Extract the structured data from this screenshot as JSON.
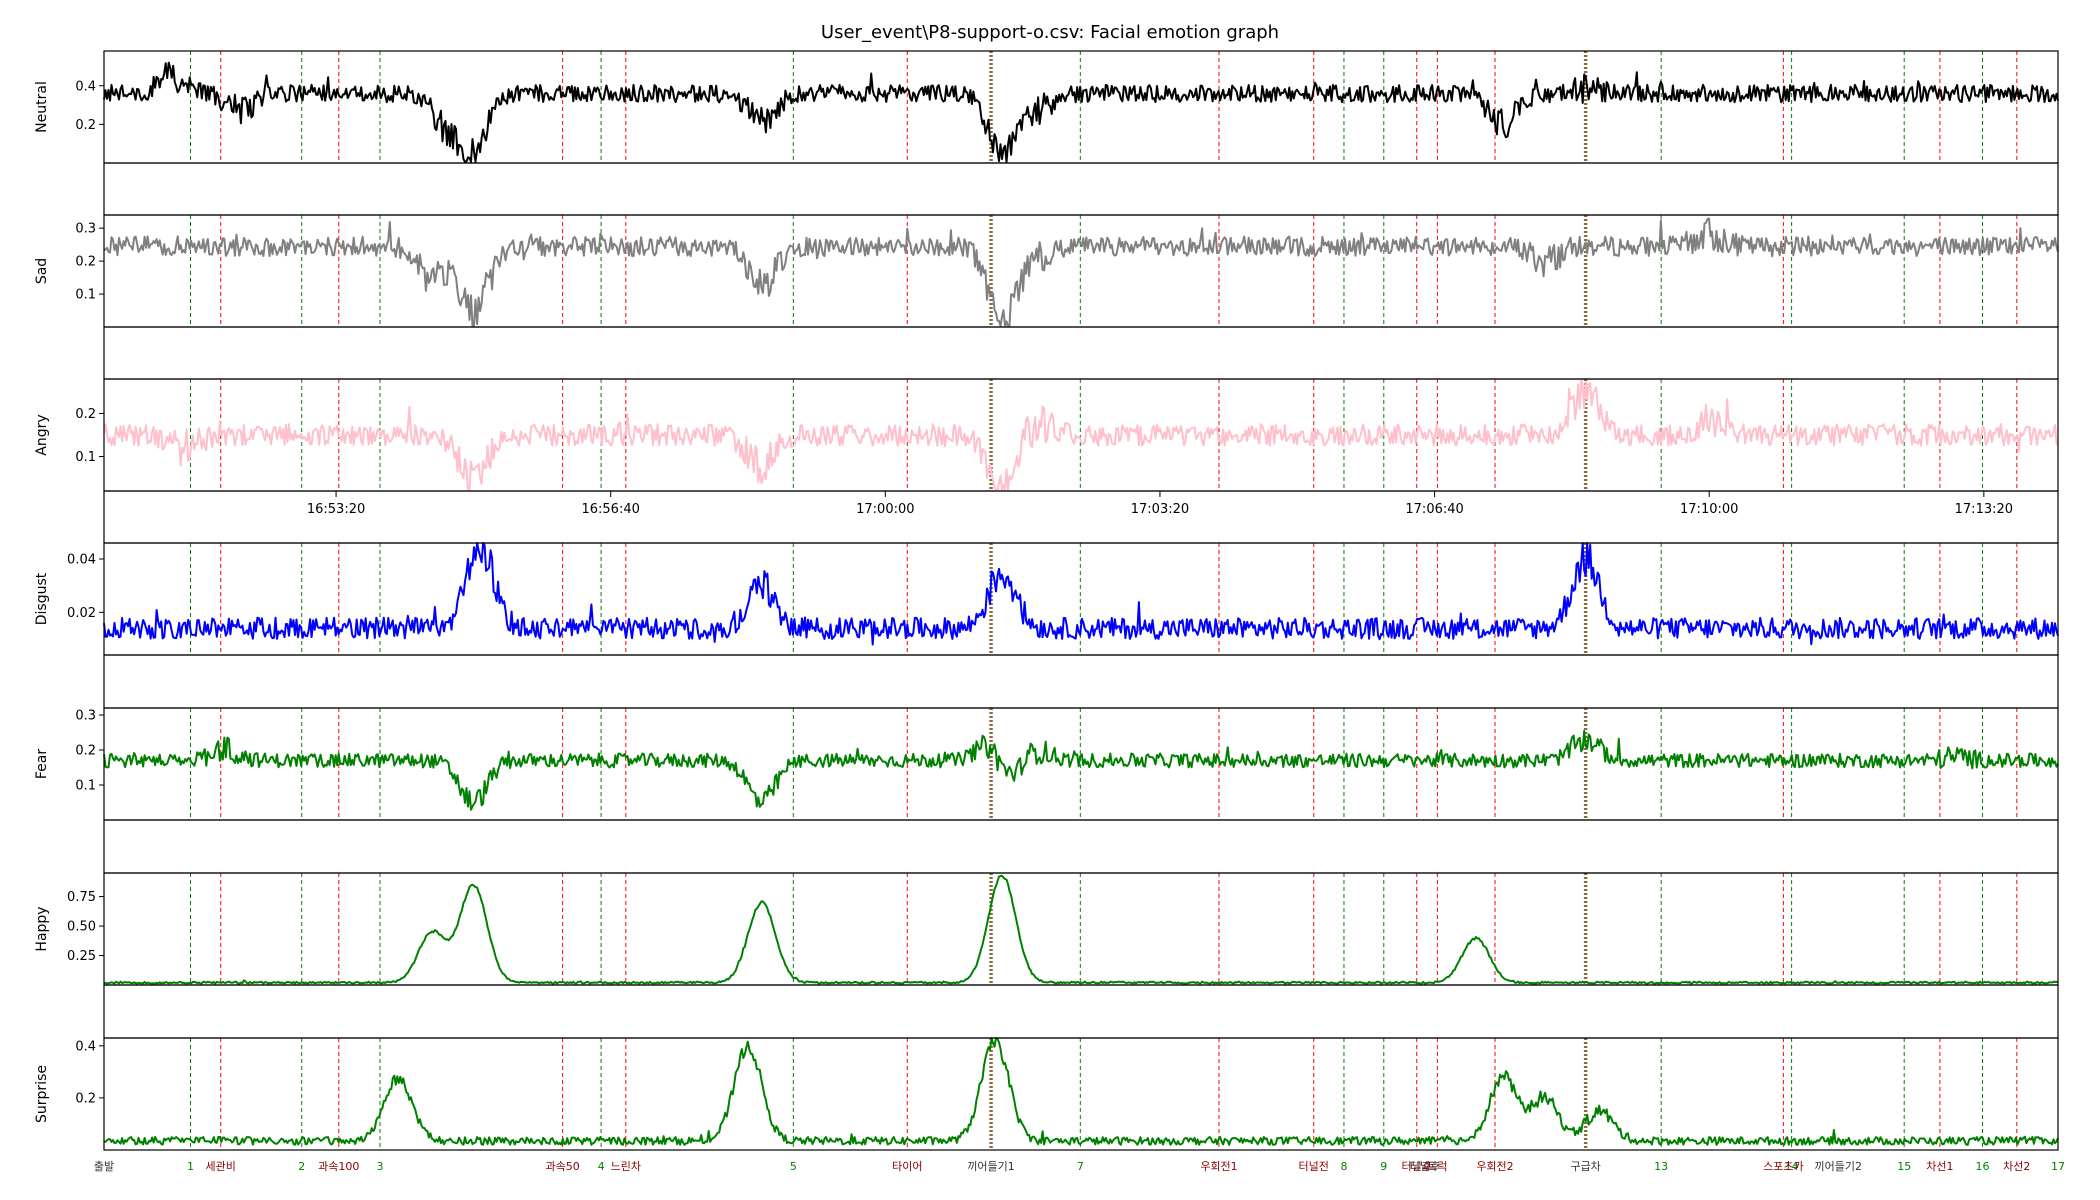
{
  "title": "User_event\\P8-support-o.csv: Facial emotion graph",
  "chart_data": {
    "type": "line",
    "time_axis": {
      "range": [
        "16:50:31",
        "17:14:14"
      ],
      "ticks": [
        "16:53:20",
        "16:56:40",
        "17:00:00",
        "17:03:20",
        "17:06:40",
        "17:10:00",
        "17:13:20"
      ]
    },
    "series": [
      {
        "name": "Neutral",
        "color": "#000000",
        "ylim": [
          0.0,
          0.58
        ],
        "ticks": [
          0.2,
          0.4
        ],
        "tick_labels": [
          "0.2",
          "0.4"
        ],
        "baseline": 0.36,
        "noise": 0.045,
        "keypoints": [
          [
            "16:51:20",
            0.45
          ],
          [
            "16:52:10",
            0.28
          ],
          [
            "16:54:40",
            0.2
          ],
          [
            "16:55:00",
            0.08
          ],
          [
            "16:58:30",
            0.22
          ],
          [
            "17:01:25",
            0.04
          ],
          [
            "17:01:50",
            0.28
          ],
          [
            "17:07:30",
            0.2
          ],
          [
            "17:08:30",
            0.38
          ]
        ]
      },
      {
        "name": "Sad",
        "color": "#808080",
        "ylim": [
          0.0,
          0.34
        ],
        "ticks": [
          0.1,
          0.2,
          0.3
        ],
        "tick_labels": [
          "0.1",
          "0.2",
          "0.3"
        ],
        "baseline": 0.245,
        "noise": 0.03,
        "keypoints": [
          [
            "16:54:30",
            0.15
          ],
          [
            "16:55:00",
            0.05
          ],
          [
            "16:58:30",
            0.12
          ],
          [
            "17:01:25",
            0.02
          ],
          [
            "17:01:50",
            0.2
          ],
          [
            "17:08:00",
            0.2
          ],
          [
            "17:10:00",
            0.28
          ]
        ]
      },
      {
        "name": "Angry",
        "color": "#ffc0cb",
        "ylim": [
          0.02,
          0.28
        ],
        "ticks": [
          0.1,
          0.2
        ],
        "tick_labels": [
          "0.1",
          "0.2"
        ],
        "baseline": 0.15,
        "noise": 0.025,
        "keypoints": [
          [
            "16:51:30",
            0.12
          ],
          [
            "16:55:00",
            0.05
          ],
          [
            "16:58:30",
            0.08
          ],
          [
            "17:01:25",
            0.03
          ],
          [
            "17:01:50",
            0.18
          ],
          [
            "17:08:30",
            0.25
          ],
          [
            "17:10:00",
            0.19
          ]
        ]
      },
      {
        "name": "Disgust",
        "color": "#0000ff",
        "ylim": [
          0.004,
          0.046
        ],
        "ticks": [
          0.02,
          0.04
        ],
        "tick_labels": [
          "0.02",
          "0.04"
        ],
        "baseline": 0.014,
        "noise": 0.004,
        "keypoints": [
          [
            "16:55:05",
            0.045
          ],
          [
            "16:58:30",
            0.03
          ],
          [
            "17:01:25",
            0.035
          ],
          [
            "17:08:30",
            0.04
          ]
        ]
      },
      {
        "name": "Fear",
        "color": "#008000",
        "ylim": [
          0.0,
          0.32
        ],
        "ticks": [
          0.1,
          0.2,
          0.3
        ],
        "tick_labels": [
          "0.1",
          "0.2",
          "0.3"
        ],
        "baseline": 0.17,
        "noise": 0.02,
        "keypoints": [
          [
            "16:52:00",
            0.2
          ],
          [
            "16:55:00",
            0.05
          ],
          [
            "16:58:30",
            0.05
          ],
          [
            "17:01:20",
            0.31
          ],
          [
            "17:01:25",
            0.03
          ],
          [
            "17:01:50",
            0.2
          ],
          [
            "17:08:30",
            0.23
          ],
          [
            "17:13:00",
            0.18
          ]
        ]
      },
      {
        "name": "Happy",
        "color": "#008000",
        "ylim": [
          0.0,
          0.95
        ],
        "ticks": [
          0.25,
          0.5,
          0.75
        ],
        "tick_labels": [
          "0.25",
          "0.50",
          "0.75"
        ],
        "baseline": 0.02,
        "noise": 0.008,
        "keypoints": [
          [
            "16:54:30",
            0.45
          ],
          [
            "16:55:00",
            0.85
          ],
          [
            "16:58:30",
            0.7
          ],
          [
            "17:01:25",
            0.93
          ],
          [
            "17:07:10",
            0.4
          ]
        ]
      },
      {
        "name": "Surprise",
        "color": "#008000",
        "ylim": [
          0.0,
          0.43
        ],
        "ticks": [
          0.2,
          0.4
        ],
        "tick_labels": [
          "0.2",
          "0.4"
        ],
        "baseline": 0.035,
        "noise": 0.015,
        "keypoints": [
          [
            "16:54:05",
            0.28
          ],
          [
            "16:58:20",
            0.4
          ],
          [
            "17:01:20",
            0.42
          ],
          [
            "17:07:30",
            0.28
          ],
          [
            "17:08:00",
            0.2
          ],
          [
            "17:08:40",
            0.15
          ]
        ]
      }
    ],
    "green_events": [
      {
        "time": "16:51:34",
        "label": "1"
      },
      {
        "time": "16:52:55",
        "label": "2"
      },
      {
        "time": "16:53:52",
        "label": "3"
      },
      {
        "time": "16:56:33",
        "label": "4"
      },
      {
        "time": "16:58:53",
        "label": "5"
      },
      {
        "time": "17:02:22",
        "label": "7"
      },
      {
        "time": "17:05:34",
        "label": "8"
      },
      {
        "time": "17:06:03",
        "label": "9"
      },
      {
        "time": "17:09:25",
        "label": "13"
      },
      {
        "time": "17:11:00",
        "label": "14"
      },
      {
        "time": "17:12:22",
        "label": "15"
      },
      {
        "time": "17:13:19",
        "label": "16"
      },
      {
        "time": "17:14:14",
        "label": "17"
      }
    ],
    "red_events": [
      {
        "time": "16:51:56",
        "label": "세관비"
      },
      {
        "time": "16:53:22",
        "label": "과속100"
      },
      {
        "time": "16:56:05",
        "label": "과속50"
      },
      {
        "time": "16:56:51",
        "label": "느린차"
      },
      {
        "time": "17:00:16",
        "label": "타이어"
      },
      {
        "time": "17:04:03",
        "label": "우회전1"
      },
      {
        "time": "17:05:12",
        "label": "터널전"
      },
      {
        "time": "17:06:27",
        "label": "터널후"
      },
      {
        "time": "17:06:42",
        "label": "트럭"
      },
      {
        "time": "17:07:24",
        "label": "우회전2"
      },
      {
        "time": "17:10:54",
        "label": "스포츠카"
      },
      {
        "time": "17:12:48",
        "label": "차선1"
      },
      {
        "time": "17:13:44",
        "label": "차선2"
      }
    ],
    "brown_events": [
      {
        "time": "17:01:17",
        "label": "끼어들기1"
      },
      {
        "time": "17:08:30",
        "label": "구급차"
      }
    ],
    "extra_labels": [
      {
        "time": "16:50:31",
        "label": "출발"
      },
      {
        "time": "17:06:33",
        "label": "터널후"
      },
      {
        "time": "17:11:34",
        "label": "끼어들기2"
      }
    ]
  }
}
